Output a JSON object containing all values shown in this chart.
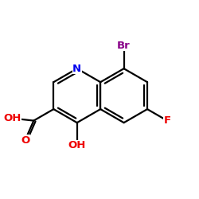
{
  "background_color": "#ffffff",
  "atom_colors": {
    "N": "#0000ee",
    "O": "#ee0000",
    "F": "#ee0000",
    "Br": "#880088",
    "C": "#000000"
  },
  "figsize": [
    2.5,
    2.5
  ],
  "dpi": 100,
  "bond_lw": 1.6,
  "font_size": 9.5
}
